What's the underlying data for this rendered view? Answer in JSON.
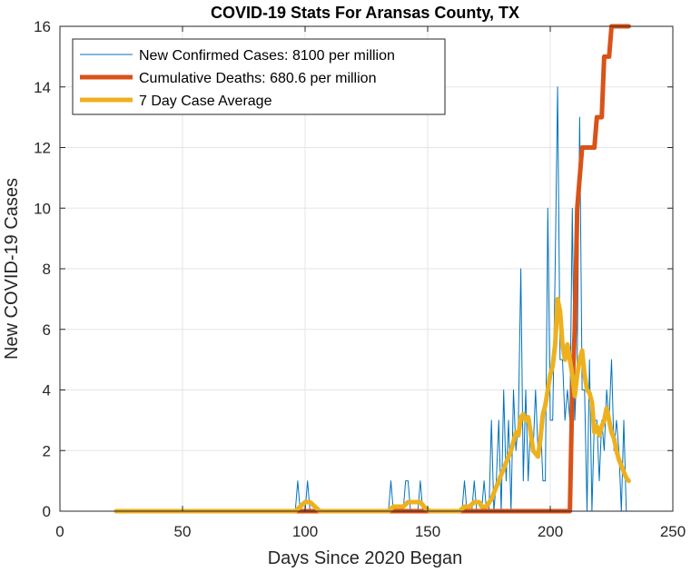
{
  "chart_data": {
    "type": "line",
    "title": "COVID-19 Stats For Aransas County, TX",
    "xlabel": "Days Since 2020 Began",
    "ylabel": "New COVID-19 Cases",
    "xlim": [
      0,
      250
    ],
    "ylim": [
      0,
      16
    ],
    "xticks": [
      0,
      50,
      100,
      150,
      200,
      250
    ],
    "yticks": [
      0,
      2,
      4,
      6,
      8,
      10,
      12,
      14,
      16
    ],
    "grid": true,
    "legend_position": "top-left",
    "series": [
      {
        "name": "New Confirmed Cases: 8100 per million",
        "color": "#0072BD",
        "linewidth": "thin",
        "points": [
          [
            23,
            0
          ],
          [
            96,
            0
          ],
          [
            97,
            1
          ],
          [
            98,
            0
          ],
          [
            100,
            0
          ],
          [
            101,
            1
          ],
          [
            102,
            0
          ],
          [
            134,
            0
          ],
          [
            135,
            1
          ],
          [
            136,
            0
          ],
          [
            140,
            0
          ],
          [
            141,
            1
          ],
          [
            142,
            1
          ],
          [
            143,
            0
          ],
          [
            146,
            0
          ],
          [
            147,
            1
          ],
          [
            148,
            0
          ],
          [
            164,
            0
          ],
          [
            165,
            1
          ],
          [
            166,
            0
          ],
          [
            168,
            0
          ],
          [
            169,
            1
          ],
          [
            170,
            0
          ],
          [
            172,
            0
          ],
          [
            173,
            1
          ],
          [
            174,
            0
          ],
          [
            175,
            0
          ],
          [
            176,
            3
          ],
          [
            177,
            0
          ],
          [
            178,
            1
          ],
          [
            179,
            3
          ],
          [
            180,
            0
          ],
          [
            181,
            4
          ],
          [
            182,
            1
          ],
          [
            183,
            3
          ],
          [
            184,
            0
          ],
          [
            185,
            4
          ],
          [
            186,
            2
          ],
          [
            187,
            3
          ],
          [
            188,
            8
          ],
          [
            189,
            1
          ],
          [
            190,
            4
          ],
          [
            191,
            1
          ],
          [
            192,
            3
          ],
          [
            193,
            2
          ],
          [
            194,
            4
          ],
          [
            195,
            2
          ],
          [
            196,
            3
          ],
          [
            197,
            1
          ],
          [
            198,
            1
          ],
          [
            199,
            10
          ],
          [
            200,
            3
          ],
          [
            201,
            3
          ],
          [
            202,
            8
          ],
          [
            203,
            14
          ],
          [
            204,
            5
          ],
          [
            205,
            5
          ],
          [
            206,
            3
          ],
          [
            207,
            4
          ],
          [
            208,
            3
          ],
          [
            209,
            10
          ],
          [
            210,
            3
          ],
          [
            211,
            5
          ],
          [
            212,
            13
          ],
          [
            213,
            4
          ],
          [
            214,
            4
          ],
          [
            215,
            0
          ],
          [
            216,
            5
          ],
          [
            217,
            0
          ],
          [
            218,
            3
          ],
          [
            219,
            3
          ],
          [
            220,
            1
          ],
          [
            221,
            3
          ],
          [
            222,
            2
          ],
          [
            223,
            4
          ],
          [
            224,
            3
          ],
          [
            225,
            5
          ],
          [
            226,
            2
          ],
          [
            227,
            3
          ],
          [
            228,
            2
          ],
          [
            229,
            0
          ],
          [
            230,
            3
          ],
          [
            231,
            0
          ],
          [
            232,
            0
          ]
        ]
      },
      {
        "name": "Cumulative Deaths: 680.6 per million",
        "color": "#D95319",
        "linewidth": "thick",
        "points": [
          [
            23,
            0
          ],
          [
            208,
            0
          ],
          [
            209,
            4
          ],
          [
            210,
            6
          ],
          [
            211,
            10
          ],
          [
            212,
            11
          ],
          [
            213,
            12
          ],
          [
            218,
            12
          ],
          [
            219,
            13
          ],
          [
            221,
            13
          ],
          [
            222,
            15
          ],
          [
            224,
            15
          ],
          [
            225,
            16
          ],
          [
            232,
            16
          ]
        ]
      },
      {
        "name": "7 Day Case Average",
        "color": "#EDB120",
        "linewidth": "thick",
        "points": [
          [
            23,
            0
          ],
          [
            96,
            0
          ],
          [
            98,
            0.15
          ],
          [
            100,
            0.3
          ],
          [
            102,
            0.3
          ],
          [
            104,
            0.15
          ],
          [
            106,
            0
          ],
          [
            134,
            0
          ],
          [
            136,
            0.15
          ],
          [
            138,
            0.15
          ],
          [
            140,
            0.15
          ],
          [
            142,
            0.3
          ],
          [
            144,
            0.3
          ],
          [
            147,
            0.3
          ],
          [
            149,
            0.1
          ],
          [
            151,
            0
          ],
          [
            163,
            0
          ],
          [
            165,
            0.15
          ],
          [
            167,
            0.15
          ],
          [
            169,
            0.3
          ],
          [
            171,
            0.3
          ],
          [
            172,
            0.15
          ],
          [
            174,
            0.15
          ],
          [
            176,
            0.4
          ],
          [
            178,
            0.8
          ],
          [
            180,
            1.2
          ],
          [
            182,
            1.6
          ],
          [
            184,
            2.0
          ],
          [
            186,
            2.6
          ],
          [
            187,
            2.5
          ],
          [
            188,
            3.1
          ],
          [
            189,
            3.2
          ],
          [
            190,
            3.0
          ],
          [
            191,
            3.1
          ],
          [
            192,
            2.6
          ],
          [
            193,
            2.0
          ],
          [
            194,
            1.9
          ],
          [
            195,
            1.8
          ],
          [
            196,
            2.4
          ],
          [
            197,
            3.2
          ],
          [
            198,
            3.5
          ],
          [
            199,
            4.0
          ],
          [
            200,
            4.5
          ],
          [
            201,
            4.8
          ],
          [
            202,
            5.5
          ],
          [
            203,
            7.0
          ],
          [
            204,
            6.6
          ],
          [
            205,
            5.5
          ],
          [
            206,
            5.0
          ],
          [
            207,
            5.5
          ],
          [
            208,
            5.0
          ],
          [
            209,
            4.5
          ],
          [
            210,
            3.8
          ],
          [
            211,
            4.5
          ],
          [
            212,
            5.0
          ],
          [
            213,
            5.3
          ],
          [
            214,
            4.5
          ],
          [
            215,
            4.0
          ],
          [
            216,
            3.9
          ],
          [
            217,
            3.6
          ],
          [
            218,
            2.6
          ],
          [
            219,
            2.8
          ],
          [
            220,
            2.5
          ],
          [
            221,
            2.8
          ],
          [
            222,
            3.0
          ],
          [
            223,
            3.4
          ],
          [
            224,
            3.0
          ],
          [
            225,
            2.6
          ],
          [
            226,
            2.4
          ],
          [
            227,
            2.0
          ],
          [
            228,
            1.7
          ],
          [
            229,
            1.5
          ],
          [
            230,
            1.3
          ],
          [
            231,
            1.1
          ],
          [
            232,
            1.0
          ]
        ]
      }
    ]
  }
}
